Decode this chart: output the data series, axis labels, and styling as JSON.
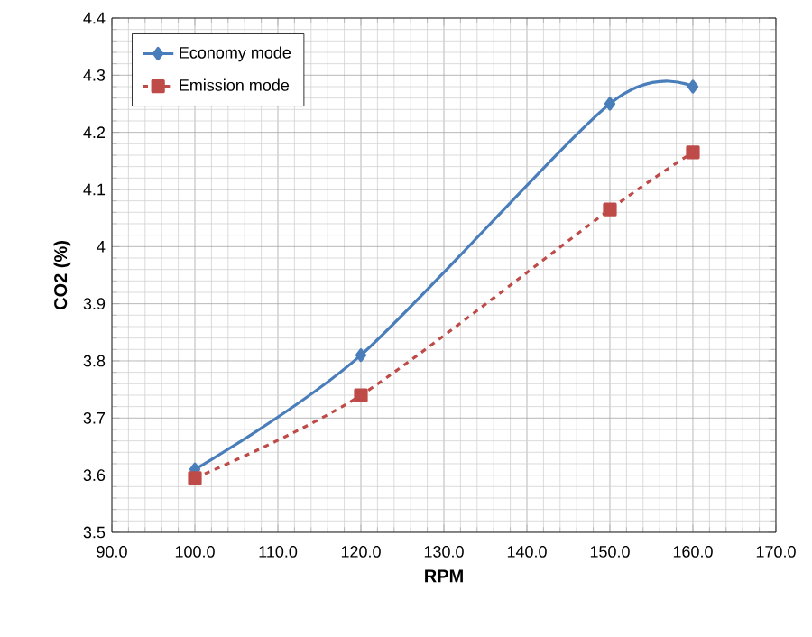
{
  "chart_data": {
    "type": "line",
    "xlabel": "RPM",
    "ylabel": "CO2 (%)",
    "x": [
      100,
      120,
      150,
      160
    ],
    "series": [
      {
        "name": "Economy mode",
        "color": "#4a7ebb",
        "values": [
          3.61,
          3.81,
          4.25,
          4.28
        ],
        "marker": "diamond",
        "line_style": "solid"
      },
      {
        "name": "Emission mode",
        "color": "#be4b48",
        "values": [
          3.595,
          3.74,
          4.065,
          4.165
        ],
        "marker": "square",
        "line_style": "dashed"
      }
    ],
    "xlim": [
      90,
      170
    ],
    "xticks": [
      {
        "value": 90,
        "label": "90.0"
      },
      {
        "value": 100,
        "label": "100.0"
      },
      {
        "value": 110,
        "label": "110.0"
      },
      {
        "value": 120,
        "label": "120.0"
      },
      {
        "value": 130,
        "label": "130.0"
      },
      {
        "value": 140,
        "label": "140.0"
      },
      {
        "value": 150,
        "label": "150.0"
      },
      {
        "value": 160,
        "label": "160.0"
      },
      {
        "value": 170,
        "label": "170.0"
      }
    ],
    "ylim": [
      3.5,
      4.4
    ],
    "yticks": [
      3.5,
      3.6,
      3.7,
      3.8,
      3.9,
      4,
      4.1,
      4.2,
      4.3,
      4.4
    ],
    "grid": true,
    "legend": "top left"
  }
}
